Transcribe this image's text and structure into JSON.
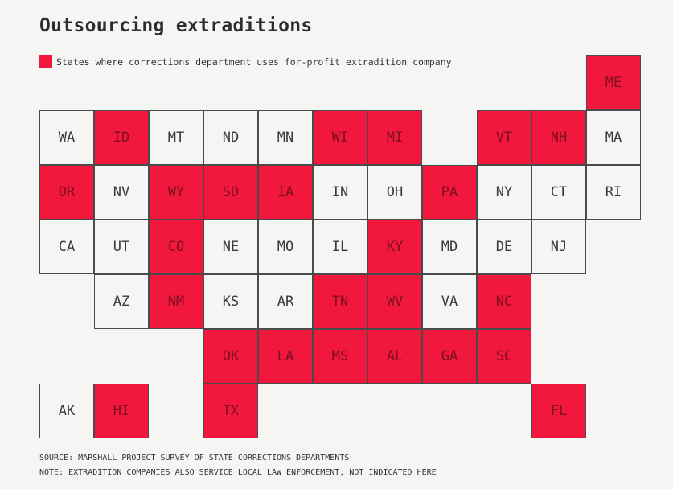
{
  "title": "Outsourcing extraditions",
  "legend": {
    "label": "States where corrections department uses for-profit extradition company",
    "color": "#f2173c"
  },
  "colors": {
    "highlight": "#f2173c",
    "default": "#f5f5f3",
    "border": "#4a4a4a"
  },
  "tiles": [
    {
      "state": "ME",
      "row": 0,
      "col": 10,
      "hl": true
    },
    {
      "state": "WA",
      "row": 1,
      "col": 0,
      "hl": false
    },
    {
      "state": "ID",
      "row": 1,
      "col": 1,
      "hl": true
    },
    {
      "state": "MT",
      "row": 1,
      "col": 2,
      "hl": false
    },
    {
      "state": "ND",
      "row": 1,
      "col": 3,
      "hl": false
    },
    {
      "state": "MN",
      "row": 1,
      "col": 4,
      "hl": false
    },
    {
      "state": "WI",
      "row": 1,
      "col": 5,
      "hl": true
    },
    {
      "state": "MI",
      "row": 1,
      "col": 6,
      "hl": true
    },
    {
      "state": "VT",
      "row": 1,
      "col": 8,
      "hl": true
    },
    {
      "state": "NH",
      "row": 1,
      "col": 9,
      "hl": true
    },
    {
      "state": "MA",
      "row": 1,
      "col": 10,
      "hl": false
    },
    {
      "state": "OR",
      "row": 2,
      "col": 0,
      "hl": true
    },
    {
      "state": "NV",
      "row": 2,
      "col": 1,
      "hl": false
    },
    {
      "state": "WY",
      "row": 2,
      "col": 2,
      "hl": true
    },
    {
      "state": "SD",
      "row": 2,
      "col": 3,
      "hl": true
    },
    {
      "state": "IA",
      "row": 2,
      "col": 4,
      "hl": true
    },
    {
      "state": "IN",
      "row": 2,
      "col": 5,
      "hl": false
    },
    {
      "state": "OH",
      "row": 2,
      "col": 6,
      "hl": false
    },
    {
      "state": "PA",
      "row": 2,
      "col": 7,
      "hl": true
    },
    {
      "state": "NY",
      "row": 2,
      "col": 8,
      "hl": false
    },
    {
      "state": "CT",
      "row": 2,
      "col": 9,
      "hl": false
    },
    {
      "state": "RI",
      "row": 2,
      "col": 10,
      "hl": false
    },
    {
      "state": "CA",
      "row": 3,
      "col": 0,
      "hl": false
    },
    {
      "state": "UT",
      "row": 3,
      "col": 1,
      "hl": false
    },
    {
      "state": "CO",
      "row": 3,
      "col": 2,
      "hl": true
    },
    {
      "state": "NE",
      "row": 3,
      "col": 3,
      "hl": false
    },
    {
      "state": "MO",
      "row": 3,
      "col": 4,
      "hl": false
    },
    {
      "state": "IL",
      "row": 3,
      "col": 5,
      "hl": false
    },
    {
      "state": "KY",
      "row": 3,
      "col": 6,
      "hl": true
    },
    {
      "state": "MD",
      "row": 3,
      "col": 7,
      "hl": false
    },
    {
      "state": "DE",
      "row": 3,
      "col": 8,
      "hl": false
    },
    {
      "state": "NJ",
      "row": 3,
      "col": 9,
      "hl": false
    },
    {
      "state": "AZ",
      "row": 4,
      "col": 1,
      "hl": false
    },
    {
      "state": "NM",
      "row": 4,
      "col": 2,
      "hl": true
    },
    {
      "state": "KS",
      "row": 4,
      "col": 3,
      "hl": false
    },
    {
      "state": "AR",
      "row": 4,
      "col": 4,
      "hl": false
    },
    {
      "state": "TN",
      "row": 4,
      "col": 5,
      "hl": true
    },
    {
      "state": "WV",
      "row": 4,
      "col": 6,
      "hl": true
    },
    {
      "state": "VA",
      "row": 4,
      "col": 7,
      "hl": false
    },
    {
      "state": "NC",
      "row": 4,
      "col": 8,
      "hl": true
    },
    {
      "state": "OK",
      "row": 5,
      "col": 3,
      "hl": true
    },
    {
      "state": "LA",
      "row": 5,
      "col": 4,
      "hl": true
    },
    {
      "state": "MS",
      "row": 5,
      "col": 5,
      "hl": true
    },
    {
      "state": "AL",
      "row": 5,
      "col": 6,
      "hl": true
    },
    {
      "state": "GA",
      "row": 5,
      "col": 7,
      "hl": true
    },
    {
      "state": "SC",
      "row": 5,
      "col": 8,
      "hl": true
    },
    {
      "state": "AK",
      "row": 6,
      "col": 0,
      "hl": false
    },
    {
      "state": "HI",
      "row": 6,
      "col": 1,
      "hl": true
    },
    {
      "state": "TX",
      "row": 6,
      "col": 3,
      "hl": true
    },
    {
      "state": "FL",
      "row": 6,
      "col": 9,
      "hl": true
    }
  ],
  "footer": {
    "source": "SOURCE: MARSHALL PROJECT SURVEY OF STATE CORRECTIONS DEPARTMENTS",
    "note": "NOTE: EXTRADITION COMPANIES ALSO SERVICE LOCAL LAW ENFORCEMENT, NOT INDICATED HERE"
  }
}
